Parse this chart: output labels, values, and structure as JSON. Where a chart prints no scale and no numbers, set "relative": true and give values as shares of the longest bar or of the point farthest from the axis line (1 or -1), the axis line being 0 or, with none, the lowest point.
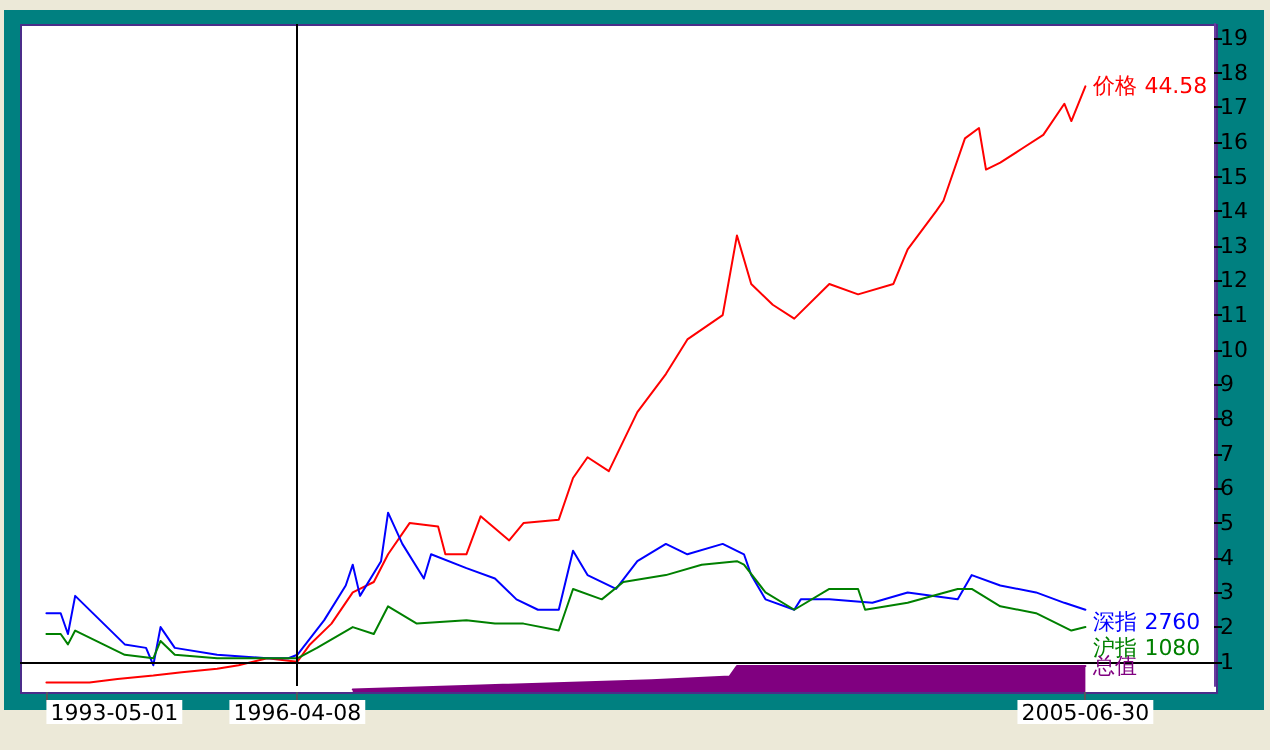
{
  "chart_data": [
    {
      "type": "line",
      "xlim": [
        "1993-01-08",
        "2007-01-01"
      ],
      "ylim": [
        0.3,
        19.4
      ],
      "yticks": [
        1,
        2,
        3,
        4,
        5,
        6,
        7,
        8,
        9,
        10,
        11,
        12,
        13,
        14,
        15,
        16,
        17,
        18,
        19
      ],
      "tick_labels": "y",
      "ref_lines": [
        {
          "axis": "x",
          "value": "1996-04-08",
          "color": "#000000"
        },
        {
          "axis": "y",
          "value": 1,
          "color": "#000000"
        }
      ],
      "series": [
        {
          "name": "价格 44.58",
          "color": "#ff0000",
          "x": [
            "1993-05",
            "1993-11",
            "1994-03",
            "1994-08",
            "1994-12",
            "1995-05",
            "1995-08",
            "1995-12",
            "1996-04-08",
            "1996-06",
            "1996-09",
            "1996-12",
            "1997-03",
            "1997-05",
            "1997-08",
            "1997-12",
            "1998-01",
            "1998-04",
            "1998-06",
            "1998-10",
            "1998-12",
            "1999-05",
            "1999-07",
            "1999-09",
            "1999-12",
            "2000-04",
            "2000-08",
            "2000-11",
            "2001-04",
            "2001-06",
            "2001-08",
            "2001-11",
            "2002-02",
            "2002-07",
            "2002-11",
            "2003-04",
            "2003-06",
            "2003-10",
            "2003-11",
            "2004-02",
            "2004-04",
            "2004-05",
            "2004-07",
            "2004-10",
            "2005-01",
            "2005-04",
            "2005-05",
            "2005-06-30"
          ],
          "values": [
            0.4,
            0.4,
            0.5,
            0.6,
            0.7,
            0.8,
            0.9,
            1.1,
            1.0,
            1.5,
            2.1,
            3.0,
            3.3,
            4.1,
            5.0,
            4.9,
            4.1,
            4.1,
            5.2,
            4.5,
            5.0,
            5.1,
            6.3,
            6.9,
            6.5,
            8.2,
            9.3,
            10.3,
            11.0,
            13.3,
            11.9,
            11.3,
            10.9,
            11.9,
            11.6,
            11.9,
            12.9,
            14.0,
            14.3,
            16.1,
            16.4,
            15.2,
            15.4,
            15.8,
            16.2,
            17.1,
            16.6,
            17.6
          ]
        },
        {
          "name": "深指 2760",
          "color": "#0000ff",
          "x": [
            "1993-05",
            "1993-07",
            "1993-08",
            "1993-09",
            "1994-04",
            "1994-07",
            "1994-08",
            "1994-09",
            "1994-11",
            "1995-05",
            "1995-12",
            "1996-03",
            "1996-04-08",
            "1996-08",
            "1996-11",
            "1996-12",
            "1997-01",
            "1997-04",
            "1997-05",
            "1997-07",
            "1997-10",
            "1997-11",
            "1998-04",
            "1998-08",
            "1998-11",
            "1999-02",
            "1999-05",
            "1999-07",
            "1999-09",
            "2000-01",
            "2000-04",
            "2000-08",
            "2000-11",
            "2001-04",
            "2001-07",
            "2001-08",
            "2001-10",
            "2002-02",
            "2002-03",
            "2002-07",
            "2003-01",
            "2003-06",
            "2004-01",
            "2004-03",
            "2004-07",
            "2004-12",
            "2005-04",
            "2005-06-30"
          ],
          "values": [
            2.4,
            2.4,
            1.8,
            2.9,
            1.5,
            1.4,
            0.9,
            2.0,
            1.4,
            1.2,
            1.1,
            1.1,
            1.2,
            2.2,
            3.2,
            3.8,
            2.9,
            3.9,
            5.3,
            4.4,
            3.4,
            4.1,
            3.7,
            3.4,
            2.8,
            2.5,
            2.5,
            4.2,
            3.5,
            3.1,
            3.9,
            4.4,
            4.1,
            4.4,
            4.1,
            3.5,
            2.8,
            2.5,
            2.8,
            2.8,
            2.7,
            3.0,
            2.8,
            3.5,
            3.2,
            3.0,
            2.7,
            2.5
          ]
        },
        {
          "name": "沪指 1080",
          "color": "#008000",
          "x": [
            "1993-05",
            "1993-07",
            "1993-08",
            "1993-09",
            "1994-04",
            "1994-08",
            "1994-09",
            "1994-11",
            "1995-05",
            "1996-04-08",
            "1996-07",
            "1996-12",
            "1997-03",
            "1997-05",
            "1997-09",
            "1998-04",
            "1998-08",
            "1998-12",
            "1999-05",
            "1999-07",
            "1999-11",
            "2000-02",
            "2000-08",
            "2001-01",
            "2001-06",
            "2001-07",
            "2001-10",
            "2002-02",
            "2002-07",
            "2002-11",
            "2002-12",
            "2003-06",
            "2004-01",
            "2004-03",
            "2004-07",
            "2004-12",
            "2005-05",
            "2005-06-30"
          ],
          "values": [
            1.8,
            1.8,
            1.5,
            1.9,
            1.2,
            1.1,
            1.6,
            1.2,
            1.1,
            1.1,
            1.4,
            2.0,
            1.8,
            2.6,
            2.1,
            2.2,
            2.1,
            2.1,
            1.9,
            3.1,
            2.8,
            3.3,
            3.5,
            3.8,
            3.9,
            3.8,
            3.0,
            2.5,
            3.1,
            3.1,
            2.5,
            2.7,
            3.1,
            3.1,
            2.6,
            2.4,
            1.9,
            2.0
          ]
        }
      ]
    },
    {
      "type": "area",
      "relative": true,
      "xlim": [
        "1993-01-08",
        "2007-01-01"
      ],
      "xticks": [
        {
          "value": "1993-05-01",
          "label": "1993-05-01"
        },
        {
          "value": "1996-04-08",
          "label": "1996-04-08"
        },
        {
          "value": "2005-06-30",
          "label": "2005-06-30"
        }
      ],
      "tick_labels": "x",
      "series": [
        {
          "name": "总值",
          "color": "#800080",
          "x": [
            "1996-12",
            "1998-06",
            "2000-06",
            "2001-05",
            "2001-06",
            "2005-06-30"
          ],
          "values": [
            0.1,
            0.25,
            0.45,
            0.6,
            1,
            1
          ]
        }
      ]
    }
  ]
}
